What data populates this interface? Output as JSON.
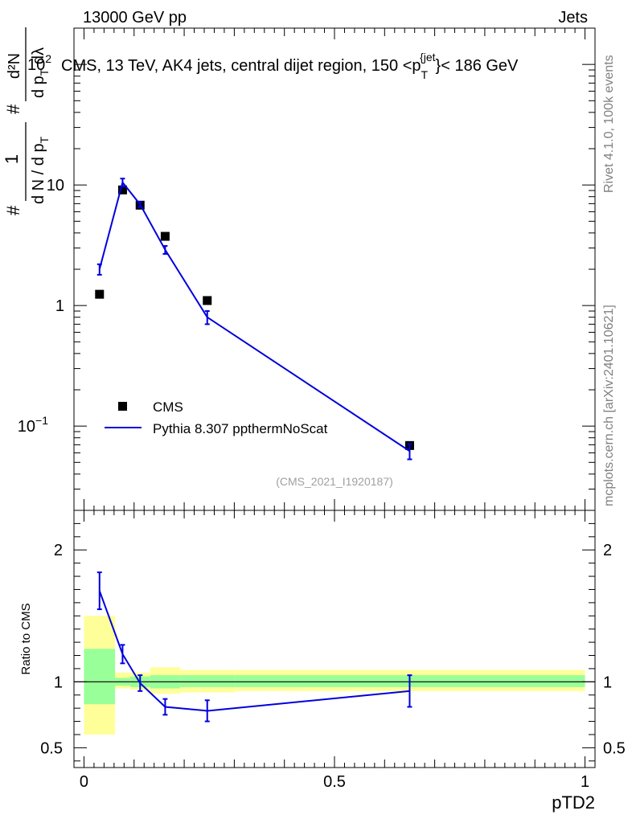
{
  "header": {
    "left": "13000 GeV pp",
    "right": "Jets"
  },
  "side_labels": {
    "rivet": "Rivet 4.1.0,  100k events",
    "mcplots": "mcplots.cern.ch [arXiv:2401.10621]"
  },
  "chart_data": [
    {
      "type": "line",
      "panel": "main",
      "title": "CMS, 13 TeV, AK4 jets, central dijet region, 150 <p_T^{jet}< 186 GeV",
      "title_parts": {
        "prefix": "CMS, 13 TeV, AK4 jets, central dijet region, 150 <p",
        "sub": "T",
        "sup": "{jet",
        "suffix": "}< 186 GeV"
      },
      "ylabel": "1 / dN / dp_T  d²N / dp_T dλ",
      "ylabel_parts": {
        "frac1_num": "1",
        "frac1_den": "d N / d p",
        "frac1_den_sub": "T",
        "frac2_num": "d²N",
        "frac2_den": "d p",
        "frac2_den_sub": "T",
        "frac2_den_suffix": " dλ",
        "hash": "#"
      },
      "yscale": "log",
      "ylim": [
        0.02,
        200
      ],
      "y_ticks": [
        {
          "value": 0.1,
          "label": "10",
          "exp": "−1"
        },
        {
          "value": 1,
          "label": "1",
          "exp": ""
        },
        {
          "value": 10,
          "label": "10",
          "exp": ""
        },
        {
          "value": 100,
          "label": "10",
          "exp": "2"
        }
      ],
      "watermark": "(CMS_2021_I1920187)",
      "series": [
        {
          "name": "CMS",
          "style": "markers",
          "x": [
            0.031,
            0.077,
            0.112,
            0.162,
            0.246,
            0.65
          ],
          "y": [
            1.24,
            9.1,
            6.8,
            3.75,
            1.1,
            0.069
          ]
        },
        {
          "name": "Pythia 8.307 ppthermNoScat",
          "style": "line",
          "color": "#0000dd",
          "x": [
            0.031,
            0.077,
            0.112,
            0.162,
            0.246,
            0.65
          ],
          "y": [
            2.0,
            10.5,
            6.9,
            2.9,
            0.8,
            0.062
          ],
          "err": [
            0.2,
            0.8,
            0.35,
            0.22,
            0.1,
            0.009
          ]
        }
      ],
      "legend": {
        "position": "bottom-left",
        "entries": [
          "CMS",
          "Pythia 8.307 ppthermNoScat"
        ]
      }
    },
    {
      "type": "line",
      "panel": "ratio",
      "ylabel": "Ratio to CMS",
      "xlabel": "pTD2",
      "xlim": [
        -0.02,
        1.02
      ],
      "ylim": [
        0.35,
        2.3
      ],
      "x_ticks": [
        {
          "value": 0,
          "label": "0"
        },
        {
          "value": 0.5,
          "label": "0.5"
        },
        {
          "value": 1,
          "label": "1"
        }
      ],
      "y_ticks": [
        {
          "value": 0.5,
          "label": "0.5"
        },
        {
          "value": 1,
          "label": "1"
        },
        {
          "value": 2,
          "label": "2"
        }
      ],
      "bands": [
        {
          "x0": 0.0,
          "x1": 0.062,
          "y68": [
            0.83,
            1.25
          ],
          "y95": [
            0.6,
            1.5
          ]
        },
        {
          "x0": 0.062,
          "x1": 0.092,
          "y68": [
            0.97,
            1.03
          ],
          "y95": [
            0.95,
            1.07
          ]
        },
        {
          "x0": 0.092,
          "x1": 0.132,
          "y68": [
            0.96,
            1.04
          ],
          "y95": [
            0.94,
            1.07
          ]
        },
        {
          "x0": 0.132,
          "x1": 0.192,
          "y68": [
            0.95,
            1.05
          ],
          "y95": [
            0.91,
            1.11
          ]
        },
        {
          "x0": 0.192,
          "x1": 0.302,
          "y68": [
            0.96,
            1.05
          ],
          "y95": [
            0.92,
            1.09
          ]
        },
        {
          "x0": 0.302,
          "x1": 1.0,
          "y68": [
            0.96,
            1.05
          ],
          "y95": [
            0.93,
            1.09
          ]
        }
      ],
      "band_colors": {
        "inner": "#99ff99",
        "outer": "#ffff99"
      },
      "series": [
        {
          "name": "Pythia 8.307 ppthermNoScat",
          "color": "#0000dd",
          "x": [
            0.031,
            0.077,
            0.112,
            0.162,
            0.246,
            0.65
          ],
          "y": [
            1.69,
            1.21,
            0.99,
            0.81,
            0.78,
            0.93
          ],
          "err": [
            0.14,
            0.07,
            0.06,
            0.06,
            0.08,
            0.12
          ]
        }
      ]
    }
  ]
}
